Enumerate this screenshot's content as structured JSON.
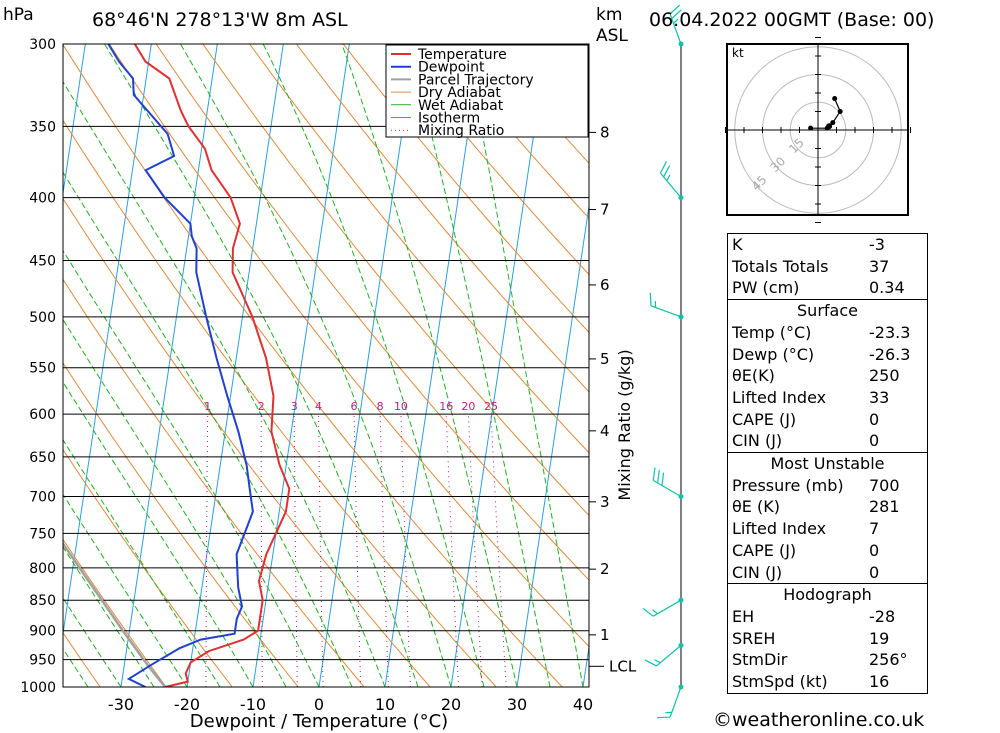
{
  "header": {
    "location": "68°46'N  278°13'W  8m  ASL",
    "datetime": "06.04.2022  00GMT  (Base: 00)",
    "p_unit": "hPa",
    "h_unit": "km",
    "h_unit2": "ASL"
  },
  "chart_data": {
    "type": "skew-t log-p",
    "xlabel": "Dewpoint / Temperature (°C)",
    "ylabel_left": "hPa",
    "ylabel_right": "Mixing Ratio (g/kg)",
    "pressure_levels": [
      300,
      350,
      400,
      450,
      500,
      550,
      600,
      650,
      700,
      750,
      800,
      850,
      900,
      950,
      1000
    ],
    "temp_ticks": [
      -30,
      -20,
      -10,
      0,
      10,
      20,
      30,
      40
    ],
    "xlim": [
      -40,
      40
    ],
    "ylim": [
      1000,
      300
    ],
    "height_ticks": [
      {
        "km": "1",
        "p": 907
      },
      {
        "km": "2",
        "p": 802
      },
      {
        "km": "3",
        "p": 707
      },
      {
        "km": "4",
        "p": 619
      },
      {
        "km": "5",
        "p": 541
      },
      {
        "km": "6",
        "p": 471
      },
      {
        "km": "7",
        "p": 409
      },
      {
        "km": "8",
        "p": 354
      }
    ],
    "lcl": {
      "label": "LCL",
      "p": 962
    },
    "mixing_ratio_labels": [
      "1",
      "2",
      "3",
      "4",
      "6",
      "8",
      "10",
      "16",
      "20",
      "25"
    ],
    "mixing_ratio_values": [
      1,
      2,
      3,
      4,
      6,
      8,
      10,
      16,
      20,
      25
    ],
    "legend": [
      "Temperature",
      "Dewpoint",
      "Parcel Trajectory",
      "Dry Adiabat",
      "Wet Adiabat",
      "Isotherm",
      "Mixing Ratio"
    ],
    "colors": {
      "temperature": "#e03030",
      "dewpoint": "#2040d0",
      "parcel": "#a0a0a0",
      "dry_adiabat": "#e08a3c",
      "wet_adiabat": "#22b022",
      "isotherm": "#2aa0e0",
      "mixing_ratio": "#c0188a",
      "wind": "#10c0a8"
    },
    "temperature_profile": [
      {
        "p": 1000,
        "t": -23.3
      },
      {
        "p": 990,
        "t": -20.0
      },
      {
        "p": 975,
        "t": -20.5
      },
      {
        "p": 955,
        "t": -20.0
      },
      {
        "p": 935,
        "t": -17.5
      },
      {
        "p": 915,
        "t": -12.5
      },
      {
        "p": 900,
        "t": -10.5
      },
      {
        "p": 880,
        "t": -10.5
      },
      {
        "p": 850,
        "t": -10.5
      },
      {
        "p": 820,
        "t": -11.5
      },
      {
        "p": 780,
        "t": -11.0
      },
      {
        "p": 720,
        "t": -9.0
      },
      {
        "p": 690,
        "t": -9.0
      },
      {
        "p": 660,
        "t": -11.0
      },
      {
        "p": 620,
        "t": -13.0
      },
      {
        "p": 580,
        "t": -13.5
      },
      {
        "p": 540,
        "t": -15.5
      },
      {
        "p": 500,
        "t": -18.5
      },
      {
        "p": 460,
        "t": -22.5
      },
      {
        "p": 440,
        "t": -23.0
      },
      {
        "p": 420,
        "t": -22.5
      },
      {
        "p": 400,
        "t": -24.5
      },
      {
        "p": 380,
        "t": -28.0
      },
      {
        "p": 365,
        "t": -29.5
      },
      {
        "p": 350,
        "t": -32.5
      },
      {
        "p": 340,
        "t": -34.0
      },
      {
        "p": 320,
        "t": -36.5
      },
      {
        "p": 310,
        "t": -40.5
      },
      {
        "p": 300,
        "t": -42.5
      }
    ],
    "dewpoint_profile": [
      {
        "p": 1000,
        "t": -26.3
      },
      {
        "p": 985,
        "t": -29.0
      },
      {
        "p": 960,
        "t": -26.0
      },
      {
        "p": 930,
        "t": -22.0
      },
      {
        "p": 915,
        "t": -19.0
      },
      {
        "p": 905,
        "t": -14.0
      },
      {
        "p": 880,
        "t": -14.0
      },
      {
        "p": 860,
        "t": -13.5
      },
      {
        "p": 830,
        "t": -14.5
      },
      {
        "p": 780,
        "t": -15.5
      },
      {
        "p": 720,
        "t": -14.0
      },
      {
        "p": 690,
        "t": -15.0
      },
      {
        "p": 660,
        "t": -16.0
      },
      {
        "p": 620,
        "t": -18.0
      },
      {
        "p": 580,
        "t": -20.5
      },
      {
        "p": 540,
        "t": -23.0
      },
      {
        "p": 500,
        "t": -25.5
      },
      {
        "p": 460,
        "t": -28.0
      },
      {
        "p": 440,
        "t": -28.5
      },
      {
        "p": 430,
        "t": -29.5
      },
      {
        "p": 420,
        "t": -30.0
      },
      {
        "p": 400,
        "t": -34.5
      },
      {
        "p": 380,
        "t": -38.0
      },
      {
        "p": 370,
        "t": -34.0
      },
      {
        "p": 355,
        "t": -35.5
      },
      {
        "p": 330,
        "t": -41.5
      },
      {
        "p": 320,
        "t": -42.0
      },
      {
        "p": 310,
        "t": -44.5
      },
      {
        "p": 300,
        "t": -46.5
      }
    ],
    "parcel_profile": [
      {
        "p": 1000,
        "t": -23.3
      },
      {
        "p": 962,
        "t": -26.3
      },
      {
        "p": 900,
        "t": -31.0
      },
      {
        "p": 800,
        "t": -39.0
      },
      {
        "p": 700,
        "t": -48.0
      },
      {
        "p": 600,
        "t": -59.0
      }
    ],
    "wind_barbs": [
      {
        "p": 1000,
        "dir": 200,
        "kt": 15
      },
      {
        "p": 925,
        "dir": 230,
        "kt": 15
      },
      {
        "p": 850,
        "dir": 240,
        "kt": 15
      },
      {
        "p": 700,
        "dir": 300,
        "kt": 30
      },
      {
        "p": 500,
        "dir": 290,
        "kt": 15
      },
      {
        "p": 400,
        "dir": 320,
        "kt": 25
      },
      {
        "p": 300,
        "dir": 340,
        "kt": 25
      }
    ],
    "hodograph": {
      "unit": "kt",
      "ring_labels": [
        "15",
        "30",
        "45"
      ],
      "ring_values": [
        15,
        30,
        45
      ],
      "points": [
        [
          -4,
          1
        ],
        [
          5,
          1
        ],
        [
          8,
          4
        ],
        [
          12,
          10
        ],
        [
          9,
          17
        ]
      ],
      "storm": [
        6,
        2
      ]
    }
  },
  "indices": {
    "rows1": [
      {
        "label": "K",
        "value": "-3"
      },
      {
        "label": "Totals Totals",
        "value": "37"
      },
      {
        "label": "PW (cm)",
        "value": "0.34"
      }
    ],
    "surface": {
      "title": "Surface",
      "rows": [
        {
          "label": "Temp (°C)",
          "value": "-23.3"
        },
        {
          "label": "Dewp (°C)",
          "value": "-26.3"
        },
        {
          "label": "θE(K)",
          "value": "250"
        },
        {
          "label": "Lifted Index",
          "value": "33"
        },
        {
          "label": "CAPE (J)",
          "value": "0"
        },
        {
          "label": "CIN (J)",
          "value": "0"
        }
      ]
    },
    "most_unstable": {
      "title": "Most Unstable",
      "rows": [
        {
          "label": "Pressure (mb)",
          "value": "700"
        },
        {
          "label": "θE (K)",
          "value": "281"
        },
        {
          "label": "Lifted Index",
          "value": "7"
        },
        {
          "label": "CAPE (J)",
          "value": "0"
        },
        {
          "label": "CIN (J)",
          "value": "0"
        }
      ]
    },
    "hodograph": {
      "title": "Hodograph",
      "rows": [
        {
          "label": "EH",
          "value": "-28"
        },
        {
          "label": "SREH",
          "value": "19"
        },
        {
          "label": "StmDir",
          "value": "256°"
        },
        {
          "label": "StmSpd (kt)",
          "value": "16"
        }
      ]
    }
  },
  "copyright": "©weatheronline.co.uk"
}
